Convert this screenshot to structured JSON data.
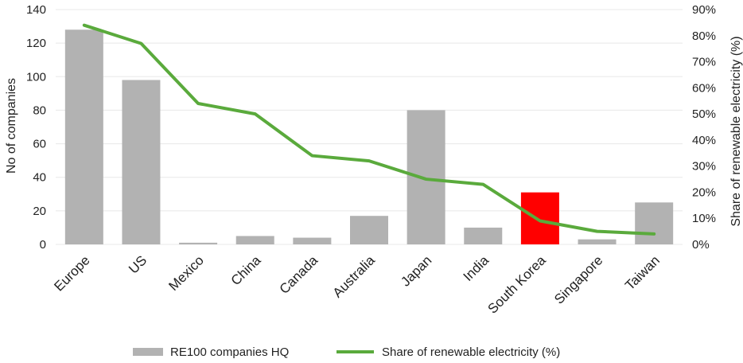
{
  "chart_data": {
    "type": "bar",
    "categories": [
      "Europe",
      "US",
      "Mexico",
      "China",
      "Canada",
      "Australia",
      "Japan",
      "India",
      "South Korea",
      "Singapore",
      "Taiwan"
    ],
    "series": [
      {
        "name": "RE100 companies HQ",
        "type": "bar",
        "axis": "left",
        "color": "#b2b2b2",
        "values": [
          128,
          98,
          1,
          5,
          4,
          17,
          80,
          10,
          31,
          3,
          25
        ],
        "highlight": {
          "category": "South Korea",
          "color": "#ff0000"
        }
      },
      {
        "name": "Share of renewable electricity (%)",
        "type": "line",
        "axis": "right",
        "color": "#5aaa3c",
        "values": [
          84,
          77,
          54,
          50,
          34,
          32,
          25,
          23,
          9,
          5,
          4
        ]
      }
    ],
    "ylabel": "No of companies",
    "ylim": [
      0,
      140
    ],
    "yticks": [
      "0",
      "20",
      "40",
      "60",
      "80",
      "100",
      "120",
      "140"
    ],
    "y2label": "Share of renewable electricity (%)",
    "y2lim": [
      0,
      90
    ],
    "y2ticks": [
      "0%",
      "10%",
      "20%",
      "30%",
      "40%",
      "50%",
      "60%",
      "70%",
      "80%",
      "90%"
    ],
    "grid": true,
    "legend_position": "bottom"
  }
}
